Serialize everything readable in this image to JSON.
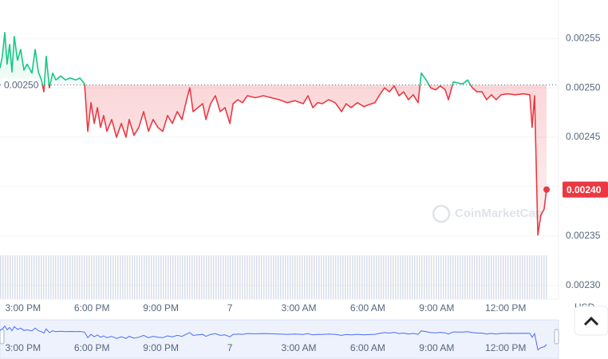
{
  "chart_data": {
    "type": "line",
    "x": [
      0,
      0.1,
      0.21,
      0.31,
      0.42,
      0.52,
      0.62,
      0.76,
      0.9,
      1.04,
      1.18,
      1.39,
      1.53,
      1.67,
      1.8,
      1.91,
      2.01,
      2.15,
      2.29,
      2.43,
      2.64,
      2.85,
      3.05,
      3.3,
      3.47,
      3.68,
      3.82,
      3.96,
      4.1,
      4.24,
      4.37,
      4.51,
      4.65,
      4.86,
      5.07,
      5.28,
      5.48,
      5.62,
      5.83,
      6.04,
      6.25,
      6.46,
      6.66,
      6.87,
      7.08,
      7.29,
      7.5,
      7.71,
      7.92,
      8.12,
      8.26,
      8.4,
      8.61,
      8.82,
      8.96,
      9.16,
      9.37,
      9.58,
      9.79,
      10.0,
      10.14,
      10.35,
      10.55,
      10.76,
      11.11,
      11.46,
      11.8,
      12.15,
      12.5,
      12.84,
      13.19,
      13.4,
      13.61,
      13.82,
      14.02,
      14.3,
      14.58,
      14.86,
      15.06,
      15.27,
      15.55,
      15.83,
      16.04,
      16.31,
      16.52,
      16.73,
      16.94,
      17.15,
      17.36,
      17.56,
      17.77,
      17.98,
      18.19,
      18.33,
      18.54,
      18.74,
      18.95,
      19.16,
      19.37,
      19.51,
      19.72,
      19.92,
      20.13,
      20.34,
      20.55,
      20.76,
      20.97,
      21.17,
      21.38,
      21.59,
      21.8,
      22.08,
      22.42,
      22.77,
      23.05,
      23.15,
      23.26,
      23.4,
      23.53,
      23.67,
      23.78
    ],
    "series": [
      {
        "values": [
          0.00252,
          0.002532,
          0.002556,
          0.002524,
          0.002544,
          0.002516,
          0.002552,
          0.002528,
          0.002539,
          0.002518,
          0.002524,
          0.002515,
          0.002539,
          0.002516,
          0.002508,
          0.002496,
          0.002532,
          0.0025,
          0.002515,
          0.002508,
          0.002512,
          0.002508,
          0.00251,
          0.002508,
          0.00251,
          0.002504,
          0.002456,
          0.002485,
          0.002464,
          0.00248,
          0.00246,
          0.002472,
          0.002456,
          0.002468,
          0.00245,
          0.002464,
          0.00245,
          0.002468,
          0.002452,
          0.00246,
          0.002476,
          0.002456,
          0.002468,
          0.00246,
          0.002456,
          0.002472,
          0.002464,
          0.002476,
          0.002468,
          0.002488,
          0.0025,
          0.002476,
          0.00248,
          0.002484,
          0.002468,
          0.002484,
          0.002492,
          0.002476,
          0.00248,
          0.002464,
          0.002484,
          0.002488,
          0.002485,
          0.002492,
          0.00249,
          0.002492,
          0.00249,
          0.002488,
          0.002485,
          0.002487,
          0.002484,
          0.002492,
          0.00248,
          0.002485,
          0.002484,
          0.002488,
          0.002485,
          0.002476,
          0.002484,
          0.00248,
          0.002485,
          0.002481,
          0.002483,
          0.002485,
          0.002493,
          0.0025,
          0.002496,
          0.002502,
          0.002492,
          0.002496,
          0.002488,
          0.002493,
          0.002485,
          0.002515,
          0.002508,
          0.0025,
          0.002498,
          0.002502,
          0.002498,
          0.002488,
          0.002506,
          0.002505,
          0.002504,
          0.002508,
          0.0025,
          0.002496,
          0.002496,
          0.002488,
          0.002493,
          0.002488,
          0.002493,
          0.002494,
          0.002493,
          0.002494,
          0.002493,
          0.00246,
          0.002492,
          0.002351,
          0.002371,
          0.002377,
          0.002397
        ]
      }
    ],
    "color_up": "#16c784",
    "color_down": "#ea3943",
    "navigator_color": "#4a6cf7",
    "xlim": [
      0,
      24.3
    ],
    "xticks": [
      {
        "value": 1,
        "label": "3:00 PM"
      },
      {
        "value": 4,
        "label": "6:00 PM"
      },
      {
        "value": 7,
        "label": "9:00 PM"
      },
      {
        "value": 10,
        "label": "7"
      },
      {
        "value": 13,
        "label": "3:00 AM"
      },
      {
        "value": 16,
        "label": "6:00 AM"
      },
      {
        "value": 19,
        "label": "9:00 AM"
      },
      {
        "value": 22,
        "label": "12:00 PM"
      }
    ],
    "ylim": [
      0.002286,
      0.002589
    ],
    "yticks": [
      {
        "value": 0.0023,
        "label": "0.00230"
      },
      {
        "value": 0.00235,
        "label": "0.00235"
      },
      {
        "value": 0.0024,
        "label": "0.00240"
      },
      {
        "value": 0.00245,
        "label": "0.00245"
      },
      {
        "value": 0.0025,
        "label": "0.00250"
      },
      {
        "value": 0.00255,
        "label": "0.00255"
      }
    ],
    "grid": true,
    "baseline": {
      "value": 0.002503,
      "label": "0.00250"
    },
    "current_price": {
      "value": 0.002397,
      "label": "0.00240"
    },
    "currency": "USD",
    "watermark": "CoinMarketCap"
  }
}
